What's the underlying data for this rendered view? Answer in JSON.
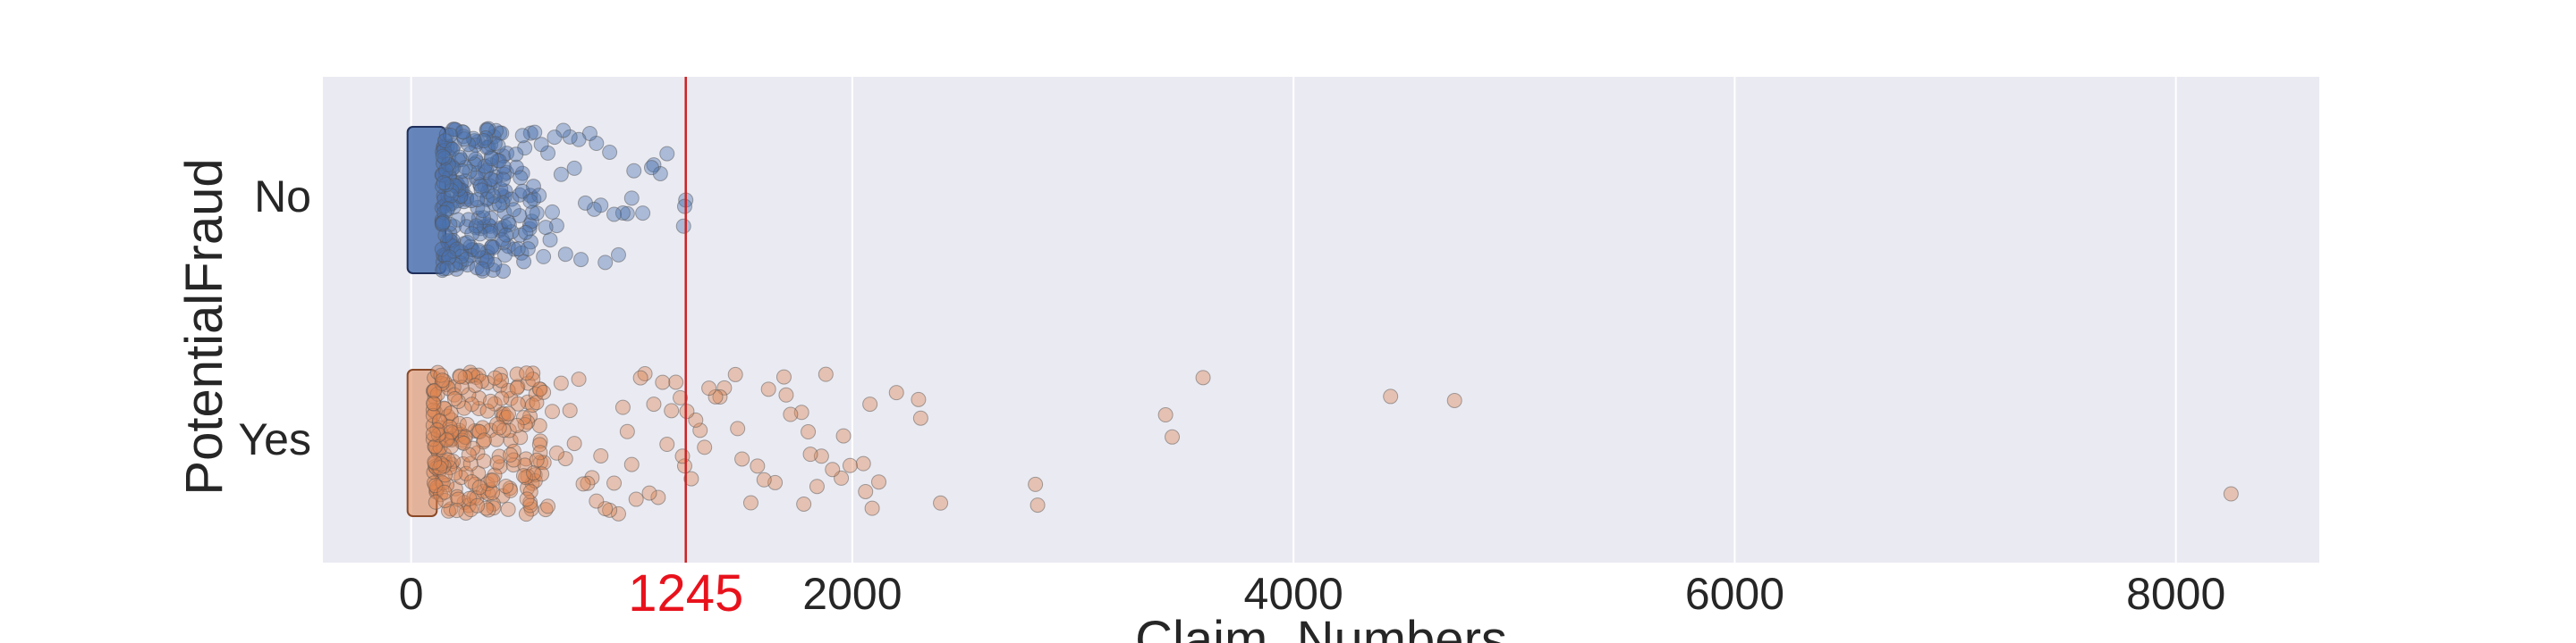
{
  "chart_data": {
    "type": "scatter",
    "subtype": "strip",
    "title": "",
    "xlabel": "Claim_Numbers",
    "ylabel": "PotentialFraud",
    "xlim": [
      -400,
      8650
    ],
    "xticks": [
      0,
      2000,
      4000,
      6000,
      8000
    ],
    "xtick_labels": [
      "0",
      "2000",
      "4000",
      "6000",
      "8000"
    ],
    "categories": [
      "No",
      "Yes"
    ],
    "grid": true,
    "reference_line": {
      "x": 1245,
      "label": "1245",
      "color": "#cc2222"
    },
    "colors": {
      "background": "#eaeaf2",
      "grid": "#ffffff",
      "No": "#4c72b0",
      "Yes": "#dd8452"
    },
    "series": [
      {
        "name": "No",
        "dense_range": [
          0,
          140
        ],
        "sparse_note": "density decreases with claim count",
        "values": [
          1245,
          1235,
          1240,
          1160,
          1100,
          1050,
          980,
          1000,
          1130,
          1090,
          1010,
          960,
          940,
          900,
          920,
          880,
          860,
          830,
          840,
          790,
          810,
          770,
          760,
          740,
          720,
          700,
          690,
          680,
          660,
          650,
          640,
          630,
          620,
          610,
          600,
          590,
          580,
          570,
          560,
          550,
          540,
          530,
          520,
          515,
          505,
          495,
          485,
          475,
          465,
          455,
          445,
          440,
          430,
          425,
          415,
          410,
          400,
          395,
          385,
          380,
          372,
          365,
          358,
          350,
          345,
          338,
          330,
          325,
          318,
          312,
          305,
          300,
          295,
          288,
          282,
          276,
          270,
          265,
          260,
          255,
          250,
          246,
          241,
          236,
          232,
          228,
          224,
          220,
          216,
          212,
          208,
          204,
          200,
          197,
          193,
          190,
          187,
          184,
          181,
          178,
          175,
          172,
          169,
          166,
          163,
          160,
          158,
          155,
          152,
          150,
          148,
          146,
          144,
          142
        ]
      },
      {
        "name": "Yes",
        "dense_range": [
          0,
          100
        ],
        "values": [
          8250,
          4730,
          4440,
          3590,
          3450,
          3420,
          2840,
          2830,
          2400,
          2310,
          2300,
          2200,
          2120,
          2090,
          2060,
          2050,
          2080,
          1990,
          1960,
          1950,
          1910,
          1880,
          1860,
          1840,
          1810,
          1800,
          1780,
          1770,
          1720,
          1700,
          1690,
          1650,
          1620,
          1600,
          1570,
          1540,
          1500,
          1480,
          1470,
          1420,
          1400,
          1380,
          1350,
          1330,
          1310,
          1290,
          1270,
          1250,
          1240,
          1230,
          1220,
          1200,
          1180,
          1160,
          1140,
          1120,
          1100,
          1080,
          1060,
          1040,
          1020,
          1000,
          980,
          960,
          940,
          920,
          900,
          880,
          860,
          840,
          820,
          800,
          780,
          760,
          740,
          720,
          700,
          680,
          660,
          640,
          620,
          600,
          585,
          570,
          555,
          540,
          525,
          510,
          495,
          480,
          465,
          450,
          440,
          430,
          420,
          410,
          400,
          390,
          380,
          370,
          360,
          350,
          340,
          330,
          320,
          310,
          300,
          290,
          280,
          270,
          262,
          254,
          246,
          238,
          230,
          222,
          214,
          206,
          198,
          190,
          182,
          175,
          168,
          161,
          154,
          148,
          142,
          136,
          130,
          124,
          118,
          112,
          106,
          100
        ]
      }
    ]
  }
}
